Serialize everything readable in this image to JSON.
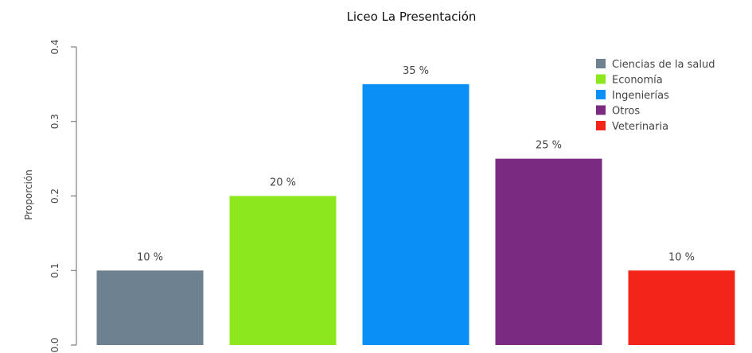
{
  "chart_data": {
    "type": "bar",
    "title": "Liceo La Presentación",
    "xlabel": "",
    "ylabel": "Proporción",
    "ylim": [
      0,
      0.4
    ],
    "yticks": [
      "0.0",
      "0.1",
      "0.2",
      "0.3",
      "0.4"
    ],
    "categories": [
      "Ciencias de la salud",
      "Economía",
      "Ingenierías",
      "Otros",
      "Veterinaria"
    ],
    "values": [
      0.1,
      0.2,
      0.35,
      0.25,
      0.1
    ],
    "data_labels": [
      "10 %",
      "20 %",
      "35 %",
      "25 %",
      "10 %"
    ],
    "colors": [
      "#6E8191",
      "#8CE81C",
      "#0A8FF7",
      "#7A2A80",
      "#F2251A"
    ],
    "grid": false,
    "legend_position": "top-right"
  }
}
